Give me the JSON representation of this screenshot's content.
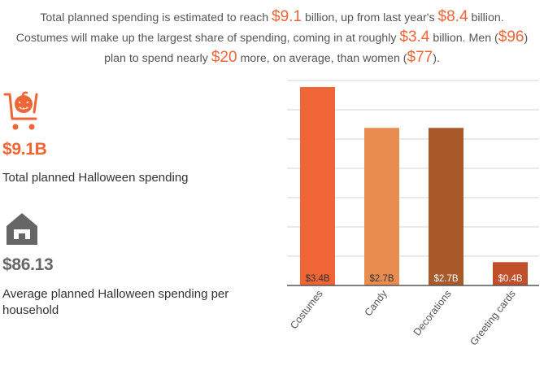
{
  "intro": {
    "l1a": "Total planned spending is estimated to reach ",
    "l1n1": "$9.1",
    "l1b": " billion, up from last year's ",
    "l1n2": "$8.4",
    "l1c": " billion.",
    "l2a": "Costumes will make up the largest share of spending, coming in at roughly ",
    "l2n": "$3.4",
    "l2b": " billion. Men (",
    "l2n2": "$96",
    "l2c": ")",
    "l3a": "plan to spend nearly ",
    "l3n": "$20",
    "l3b": " more, on average, than women (",
    "l3n2": "$77",
    "l3c": ")."
  },
  "stats": [
    {
      "icon": "pumpkin-cart-icon",
      "value": "$9.1B",
      "label": "Total planned Halloween spending",
      "color": "#ef6536"
    },
    {
      "icon": "house-icon",
      "value": "$86.13",
      "label_line1": "Average planned Halloween spending per",
      "label_line2": "household",
      "color": "#666666"
    }
  ],
  "chart_data": {
    "type": "bar",
    "title": "",
    "xlabel": "",
    "ylabel": "",
    "categories": [
      "Costumes",
      "Candy",
      "Decorations",
      "Greeting cards"
    ],
    "values": [
      3.4,
      2.7,
      2.7,
      0.4
    ],
    "data_labels": [
      "$3.4B",
      "$2.7B",
      "$2.7B",
      "$0.4B"
    ],
    "colors": [
      "#ef6536",
      "#e88c4f",
      "#a95a2b",
      "#c1502a"
    ],
    "label_colors": [
      "#333333",
      "#333333",
      "#ffffff",
      "#ffffff"
    ],
    "ylim": [
      0,
      3.4
    ],
    "grid": true,
    "gridline_count": 7
  }
}
